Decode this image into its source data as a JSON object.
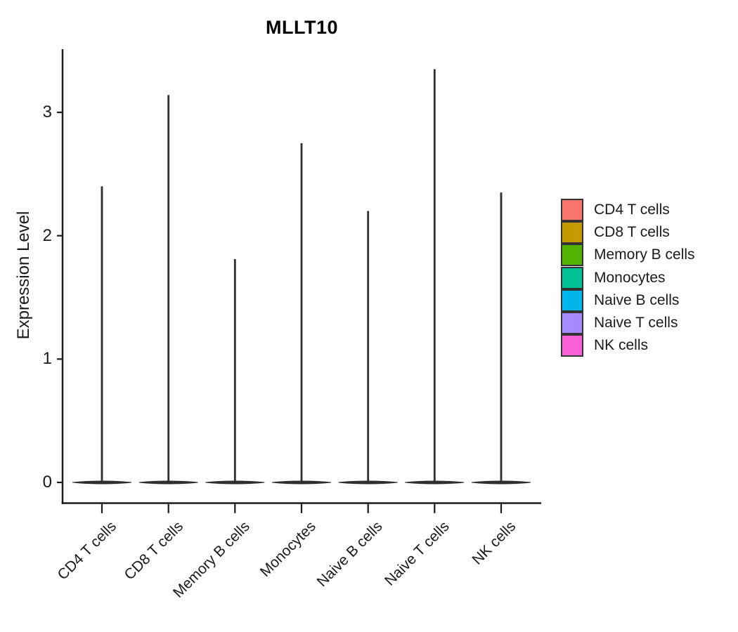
{
  "chart_data": {
    "type": "violin",
    "title": "MLLT10",
    "ylabel": "Expression Level",
    "xlabel": "",
    "categories": [
      "CD4 T cells",
      "CD8 T cells",
      "Memory B cells",
      "Monocytes",
      "Naive B cells",
      "Naive T cells",
      "NK cells"
    ],
    "violins": [
      {
        "category": "CD4 T cells",
        "color": "#F8766D",
        "max_expression": 2.4,
        "density_peak_at": 0
      },
      {
        "category": "CD8 T cells",
        "color": "#C49A00",
        "max_expression": 3.14,
        "density_peak_at": 0
      },
      {
        "category": "Memory B cells",
        "color": "#53B400",
        "max_expression": 1.81,
        "density_peak_at": 0
      },
      {
        "category": "Monocytes",
        "color": "#00C094",
        "max_expression": 2.75,
        "density_peak_at": 0
      },
      {
        "category": "Naive B cells",
        "color": "#00B6EB",
        "max_expression": 2.2,
        "density_peak_at": 0
      },
      {
        "category": "Naive T cells",
        "color": "#A58AFF",
        "max_expression": 3.35,
        "density_peak_at": 0
      },
      {
        "category": "NK cells",
        "color": "#FB61D7",
        "max_expression": 2.35,
        "density_peak_at": 0
      }
    ],
    "yticks": [
      0,
      1,
      2,
      3
    ],
    "ylim": [
      0,
      3.5
    ],
    "grid": false,
    "legend_position": "right",
    "legend": [
      {
        "label": "CD4 T cells",
        "color": "#F8766D"
      },
      {
        "label": "CD8 T cells",
        "color": "#C49A00"
      },
      {
        "label": "Memory B cells",
        "color": "#53B400"
      },
      {
        "label": "Monocytes",
        "color": "#00C094"
      },
      {
        "label": "Naive B cells",
        "color": "#00B6EB"
      },
      {
        "label": "Naive T cells",
        "color": "#A58AFF"
      },
      {
        "label": "NK cells",
        "color": "#FB61D7"
      }
    ],
    "violin_outline_color": "#2F2F2F",
    "axis_color": "#1A1A1A"
  }
}
